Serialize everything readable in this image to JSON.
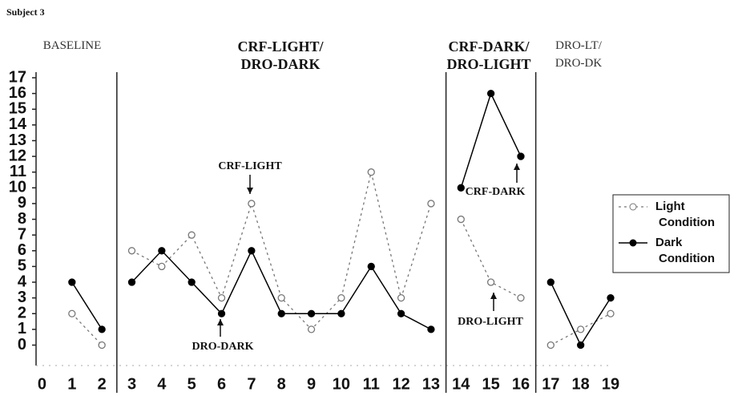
{
  "chart_data": {
    "type": "line",
    "title": "Subject 3",
    "x": [
      1,
      2,
      3,
      4,
      5,
      6,
      7,
      8,
      9,
      10,
      11,
      12,
      13,
      14,
      15,
      16,
      17,
      18,
      19
    ],
    "series": [
      {
        "name": "Light Condition",
        "color": "#777777",
        "values": [
          2,
          0,
          6,
          5,
          7,
          3,
          9,
          3,
          1,
          3,
          11,
          3,
          9,
          8,
          4,
          3,
          0,
          1,
          2
        ]
      },
      {
        "name": "Dark Condition",
        "color": "#000000",
        "values": [
          4,
          1,
          4,
          6,
          4,
          2,
          6,
          2,
          2,
          2,
          5,
          2,
          1,
          10,
          16,
          12,
          4,
          0,
          3
        ]
      }
    ],
    "phase_lines": [
      2.5,
      13.5,
      16.5
    ],
    "phases": [
      "BASELINE",
      "CRF-LIGHT/\nDRO-DARK",
      "CRF-DARK/\nDRO-LIGHT",
      "DRO-LT/\nDRO-DK"
    ],
    "annotations": [
      "CRF-LIGHT",
      "DRO-DARK",
      "CRF-DARK",
      "DRO-LIGHT"
    ],
    "xlim": [
      -0.2,
      19
    ],
    "xticks": [
      0,
      1,
      2,
      3,
      4,
      5,
      6,
      7,
      8,
      9,
      10,
      11,
      12,
      13,
      14,
      15,
      16,
      17,
      18,
      19
    ],
    "ylim": [
      -1.3,
      17
    ],
    "yticks": [
      0,
      1,
      2,
      3,
      4,
      5,
      6,
      7,
      8,
      9,
      10,
      11,
      12,
      13,
      14,
      15,
      16,
      17
    ],
    "legend": "right"
  }
}
